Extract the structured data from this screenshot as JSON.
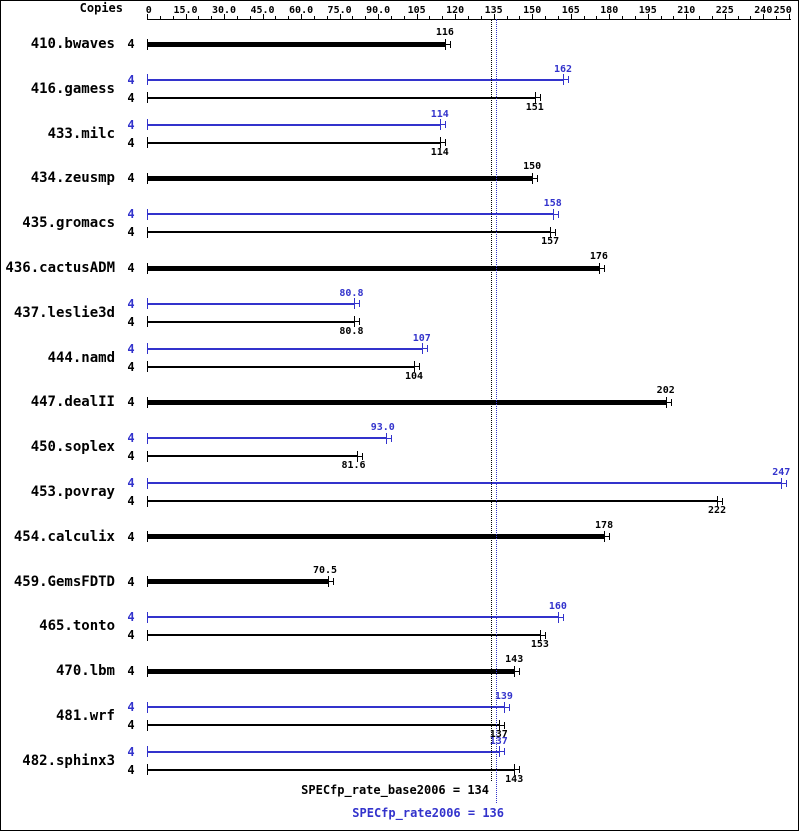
{
  "colors": {
    "peak": "#3333cc",
    "base": "#000000"
  },
  "copies_header": "Copies",
  "axis": {
    "major_ticks": [
      {
        "label": "0",
        "value": 0
      },
      {
        "label": "15.0",
        "value": 15
      },
      {
        "label": "30.0",
        "value": 30
      },
      {
        "label": "45.0",
        "value": 45
      },
      {
        "label": "60.0",
        "value": 60
      },
      {
        "label": "75.0",
        "value": 75
      },
      {
        "label": "90.0",
        "value": 90
      },
      {
        "label": "105",
        "value": 105
      },
      {
        "label": "120",
        "value": 120
      },
      {
        "label": "135",
        "value": 135
      },
      {
        "label": "150",
        "value": 150
      },
      {
        "label": "165",
        "value": 165
      },
      {
        "label": "180",
        "value": 180
      },
      {
        "label": "195",
        "value": 195
      },
      {
        "label": "210",
        "value": 210
      },
      {
        "label": "225",
        "value": 225
      },
      {
        "label": "240",
        "value": 240
      },
      {
        "label": "250",
        "value": 250
      }
    ],
    "minor_tick_step": 5
  },
  "chart_data": {
    "type": "bar",
    "orientation": "horizontal",
    "xlim": [
      0,
      250
    ],
    "legend": [
      "peak (blue)",
      "base (black)"
    ],
    "benchmarks": [
      {
        "name": "410.bwaves",
        "copies": 4,
        "base": 116,
        "base_label": "116"
      },
      {
        "name": "416.gamess",
        "copies": 4,
        "peak": 162,
        "peak_label": "162",
        "base": 151,
        "base_label": "151"
      },
      {
        "name": "433.milc",
        "copies": 4,
        "peak": 114,
        "peak_label": "114",
        "base": 114,
        "base_label": "114"
      },
      {
        "name": "434.zeusmp",
        "copies": 4,
        "base": 150,
        "base_label": "150"
      },
      {
        "name": "435.gromacs",
        "copies": 4,
        "peak": 158,
        "peak_label": "158",
        "base": 157,
        "base_label": "157"
      },
      {
        "name": "436.cactusADM",
        "copies": 4,
        "base": 176,
        "base_label": "176"
      },
      {
        "name": "437.leslie3d",
        "copies": 4,
        "peak": 80.8,
        "peak_label": "80.8",
        "base": 80.8,
        "base_label": "80.8"
      },
      {
        "name": "444.namd",
        "copies": 4,
        "peak": 107,
        "peak_label": "107",
        "base": 104,
        "base_label": "104"
      },
      {
        "name": "447.dealII",
        "copies": 4,
        "base": 202,
        "base_label": "202"
      },
      {
        "name": "450.soplex",
        "copies": 4,
        "peak": 93.0,
        "peak_label": "93.0",
        "base": 81.6,
        "base_label": "81.6"
      },
      {
        "name": "453.povray",
        "copies": 4,
        "peak": 247,
        "peak_label": "247",
        "base": 222,
        "base_label": "222"
      },
      {
        "name": "454.calculix",
        "copies": 4,
        "base": 178,
        "base_label": "178"
      },
      {
        "name": "459.GemsFDTD",
        "copies": 4,
        "base": 70.5,
        "base_label": "70.5"
      },
      {
        "name": "465.tonto",
        "copies": 4,
        "peak": 160,
        "peak_label": "160",
        "base": 153,
        "base_label": "153"
      },
      {
        "name": "470.lbm",
        "copies": 4,
        "base": 143,
        "base_label": "143"
      },
      {
        "name": "481.wrf",
        "copies": 4,
        "peak": 139,
        "peak_label": "139",
        "base": 137,
        "base_label": "137"
      },
      {
        "name": "482.sphinx3",
        "copies": 4,
        "peak": 137,
        "peak_label": "137",
        "base": 143,
        "base_label": "143"
      }
    ],
    "reference_lines": [
      {
        "series": "base",
        "value": 134
      },
      {
        "series": "peak",
        "value": 136
      }
    ],
    "footer": {
      "base_text": "SPECfp_rate_base2006 = 134",
      "peak_text": "SPECfp_rate2006 = 136"
    }
  }
}
